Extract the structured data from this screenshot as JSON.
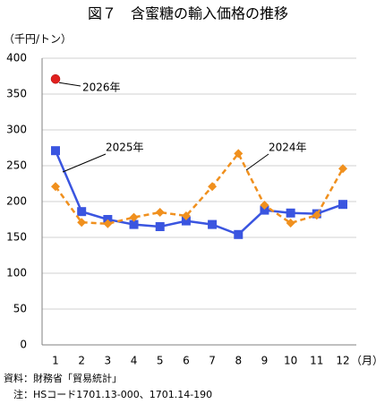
{
  "chart_data": {
    "type": "line",
    "title": "図７　含蜜糖の輸入価格の推移",
    "ylabel": "（千円/トン）",
    "xlabel": "（月）",
    "categories": [
      "1",
      "2",
      "3",
      "4",
      "5",
      "6",
      "7",
      "8",
      "9",
      "10",
      "11",
      "12"
    ],
    "series": [
      {
        "name": "2025年",
        "color": "#3a55e0",
        "marker": "square",
        "dash": false,
        "values": [
          271,
          186,
          175,
          168,
          165,
          173,
          168,
          154,
          188,
          184,
          183,
          196
        ]
      },
      {
        "name": "2024年",
        "color": "#f0901e",
        "marker": "diamond",
        "dash": true,
        "values": [
          221,
          171,
          169,
          178,
          185,
          180,
          221,
          267,
          195,
          170,
          181,
          246
        ]
      },
      {
        "name": "2026年",
        "color": "#e0201e",
        "marker": "circle",
        "dash": false,
        "values": [
          371,
          null,
          null,
          null,
          null,
          null,
          null,
          null,
          null,
          null,
          null,
          null
        ]
      }
    ],
    "ylim": [
      0,
      400
    ],
    "yticks": [
      0,
      50,
      100,
      150,
      200,
      250,
      300,
      350,
      400
    ],
    "grid": true,
    "notes": [
      "資料：財務省「貿易統計」",
      "　注：HSコード1701.13-000、1701.14-190"
    ]
  }
}
